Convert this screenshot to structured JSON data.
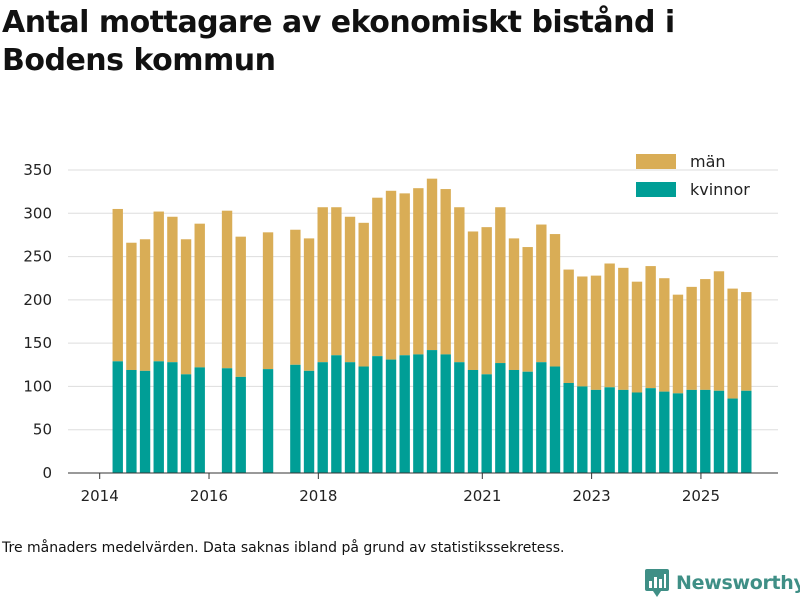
{
  "title": "Antal mottagare av ekonomiskt bistånd i Bodens kommun",
  "footnote": "Tre månaders medelvärden. Data saknas ibland på grund av statistikssekretess.",
  "brand": {
    "name": "Newsworthy",
    "icon": "newsworthy-logo-icon",
    "color": "#3f8f86"
  },
  "colors": {
    "man": "#d9ad56",
    "kvinnor": "#009e96",
    "grid": "#dddddd",
    "axis": "#333333"
  },
  "chart_data": {
    "type": "bar",
    "stacked": true,
    "title": "Antal mottagare av ekonomiskt bistånd i Bodens kommun",
    "xlabel": "",
    "ylabel": "",
    "ylim": [
      0,
      350
    ],
    "yticks": [
      0,
      50,
      100,
      150,
      200,
      250,
      300,
      350
    ],
    "x_ticks": [
      {
        "label": "2014",
        "t": 2014.0
      },
      {
        "label": "2016",
        "t": 2016.0
      },
      {
        "label": "2018",
        "t": 2018.0
      },
      {
        "label": "2021",
        "t": 2021.0
      },
      {
        "label": "2023",
        "t": 2023.0
      },
      {
        "label": "2025",
        "t": 2025.0
      }
    ],
    "x_range": [
      2013.42,
      2026.41
    ],
    "bar_width_years": 0.19,
    "legend": {
      "position": "top-right",
      "entries": [
        "män",
        "kvinnor"
      ]
    },
    "t": [
      2014.33,
      2014.58,
      2014.83,
      2015.08,
      2015.33,
      2015.58,
      2015.83,
      2016.33,
      2016.58,
      2017.08,
      2017.58,
      2017.83,
      2018.08,
      2018.33,
      2018.58,
      2018.83,
      2019.08,
      2019.33,
      2019.58,
      2019.83,
      2020.08,
      2020.33,
      2020.58,
      2020.83,
      2021.08,
      2021.33,
      2021.58,
      2021.83,
      2022.08,
      2022.33,
      2022.58,
      2022.83,
      2023.08,
      2023.33,
      2023.58,
      2023.83,
      2024.08,
      2024.33,
      2024.58,
      2024.83,
      2025.08,
      2025.33,
      2025.58,
      2025.83
    ],
    "series": [
      {
        "name": "kvinnor",
        "values": [
          129,
          119,
          118,
          129,
          128,
          114,
          122,
          121,
          111,
          120,
          125,
          118,
          128,
          136,
          128,
          123,
          135,
          131,
          136,
          137,
          142,
          137,
          128,
          119,
          114,
          127,
          119,
          117,
          128,
          123,
          104,
          100,
          96,
          99,
          96,
          93,
          98,
          94,
          92,
          96,
          96,
          95,
          86,
          95
        ]
      },
      {
        "name": "män",
        "values": [
          176,
          147,
          152,
          173,
          168,
          156,
          166,
          182,
          162,
          158,
          156,
          153,
          179,
          171,
          168,
          166,
          183,
          195,
          187,
          192,
          198,
          191,
          179,
          160,
          170,
          180,
          152,
          144,
          159,
          153,
          131,
          127,
          132,
          143,
          141,
          128,
          141,
          131,
          114,
          119,
          128,
          138,
          127,
          114
        ]
      }
    ]
  }
}
